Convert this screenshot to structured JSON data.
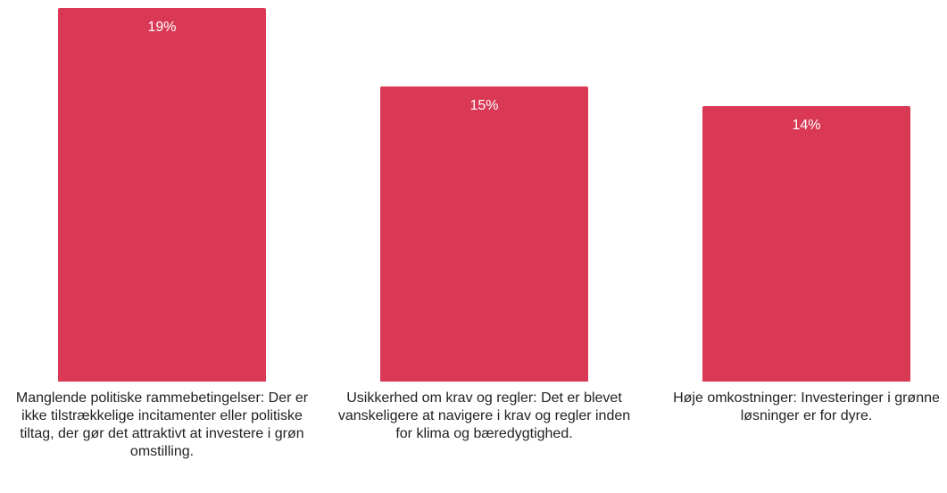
{
  "chart_data": {
    "type": "bar",
    "categories": [
      "Manglende politiske rammebetingelser: Der er ikke tilstrækkelige incitamenter eller politiske tiltag, der gør det attraktivt at investere i grøn omstilling.",
      "Usikkerhed om krav og regler: Det er blevet vanskeligere at navigere i krav og regler inden for klima og bæredygtighed.",
      "Høje omkostninger: Investeringer i grønne løsninger er for dyre."
    ],
    "values": [
      19,
      15,
      14
    ],
    "value_labels": [
      "19%",
      "15%",
      "14%"
    ],
    "color": "#d93955"
  }
}
